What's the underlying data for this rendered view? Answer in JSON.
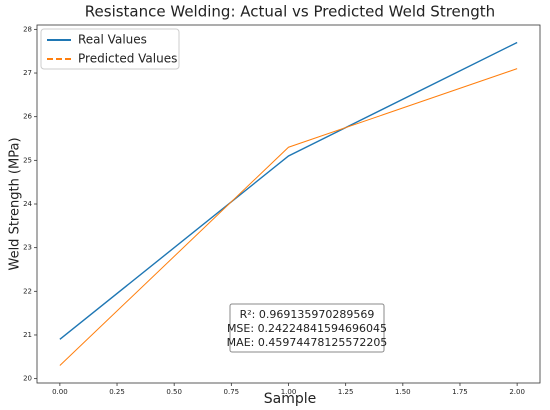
{
  "chart_data": {
    "type": "line",
    "title": "Resistance Welding: Actual vs Predicted Weld Strength",
    "xlabel": "Sample",
    "ylabel": "Weld Strength (MPa)",
    "x": [
      0,
      1,
      2
    ],
    "series": [
      {
        "name": "Real Values",
        "color": "#1f77b4",
        "values": [
          20.9,
          25.1,
          27.7
        ],
        "linestyle": "solid"
      },
      {
        "name": "Predicted Values",
        "color": "#ff7f0e",
        "values": [
          20.3,
          25.3,
          27.1
        ],
        "linestyle": "dashed"
      }
    ],
    "xlim": [
      -0.1,
      2.1
    ],
    "ylim": [
      19.9,
      28.1
    ],
    "xticks": [
      {
        "value": 0,
        "label": "0.00"
      },
      {
        "value": 0.25,
        "label": "0.25"
      },
      {
        "value": 0.5,
        "label": "0.50"
      },
      {
        "value": 0.75,
        "label": "0.75"
      },
      {
        "value": 1,
        "label": "1.00"
      },
      {
        "value": 1.25,
        "label": "1.25"
      },
      {
        "value": 1.5,
        "label": "1.50"
      },
      {
        "value": 1.75,
        "label": "1.75"
      },
      {
        "value": 2,
        "label": "2.00"
      }
    ],
    "yticks": [
      20,
      21,
      22,
      23,
      24,
      25,
      26,
      27,
      28
    ],
    "legend": "upper left",
    "annotation": [
      "R²: 0.969135970289569",
      "MSE: 0.24224841594696045",
      "MAE: 0.45974478125572205"
    ]
  }
}
